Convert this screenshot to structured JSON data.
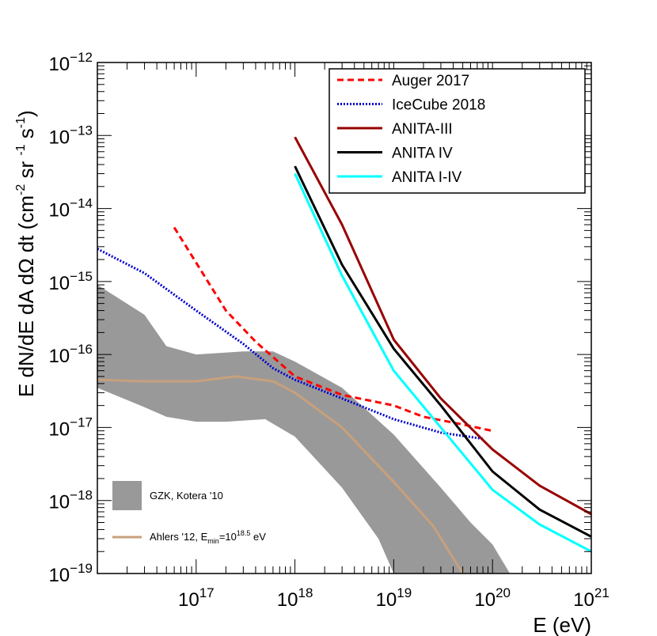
{
  "chart_data": {
    "type": "line",
    "log_x": true,
    "log_y": true,
    "xlim": [
      1e+16,
      1e+21
    ],
    "ylim": [
      1e-19,
      1e-12
    ],
    "xlabel": "E (eV)",
    "ylabel": "E dN/dE dA dΩ dt (cm⁻² sr ⁻¹ s⁻¹)",
    "ylabel_parts": {
      "base": "E dN/dE dA dΩ dt (cm",
      "exp1": "-2",
      "mid": " sr ",
      "exp2": "-1",
      "mid2": " s",
      "exp3": "-1",
      "end": ")"
    },
    "x_ticks": [
      {
        "value": 1e+17,
        "base": "10",
        "exp": "17"
      },
      {
        "value": 1e+18,
        "base": "10",
        "exp": "18"
      },
      {
        "value": 1e+19,
        "base": "10",
        "exp": "19"
      },
      {
        "value": 1e+20,
        "base": "10",
        "exp": "20"
      },
      {
        "value": 1e+21,
        "base": "10",
        "exp": "21"
      }
    ],
    "y_ticks": [
      {
        "value": 1e-12,
        "base": "10",
        "exp": "−12"
      },
      {
        "value": 1e-13,
        "base": "10",
        "exp": "−13"
      },
      {
        "value": 1e-14,
        "base": "10",
        "exp": "−14"
      },
      {
        "value": 1e-15,
        "base": "10",
        "exp": "−15"
      },
      {
        "value": 1e-16,
        "base": "10",
        "exp": "−16"
      },
      {
        "value": 1e-17,
        "base": "10",
        "exp": "−17"
      },
      {
        "value": 1e-18,
        "base": "10",
        "exp": "−18"
      },
      {
        "value": 1e-19,
        "base": "10",
        "exp": "−19"
      }
    ],
    "series": [
      {
        "name": "Auger 2017",
        "color": "#ff0000",
        "style": "dashed",
        "points": [
          [
            6e+16,
            5.5e-15
          ],
          [
            2e+17,
            4e-16
          ],
          [
            4e+17,
            1.5e-16
          ],
          [
            1e+18,
            5e-17
          ],
          [
            3e+18,
            2.8e-17
          ],
          [
            1e+19,
            2e-17
          ],
          [
            2e+19,
            1.4e-17
          ],
          [
            5e+19,
            1.1e-17
          ],
          [
            1e+20,
            9e-18
          ]
        ]
      },
      {
        "name": "IceCube 2018",
        "color": "#0000cc",
        "style": "dotted",
        "points": [
          [
            1e+16,
            2.8e-15
          ],
          [
            3e+16,
            1.3e-15
          ],
          [
            1e+17,
            4e-16
          ],
          [
            3e+17,
            1.4e-16
          ],
          [
            6e+17,
            6.5e-17
          ],
          [
            1e+18,
            4.5e-17
          ],
          [
            3e+18,
            2.5e-17
          ],
          [
            1e+19,
            1.3e-17
          ],
          [
            3e+19,
            8.5e-18
          ],
          [
            8e+19,
            7e-18
          ]
        ]
      },
      {
        "name": "ANITA-III",
        "color": "#990000",
        "style": "solid",
        "points": [
          [
            1e+18,
            9.5e-14
          ],
          [
            3e+18,
            6e-15
          ],
          [
            1e+19,
            1.6e-16
          ],
          [
            3e+19,
            2.5e-17
          ],
          [
            1e+20,
            5e-18
          ],
          [
            3e+20,
            1.6e-18
          ],
          [
            1e+21,
            6.5e-19
          ]
        ]
      },
      {
        "name": "ANITA IV",
        "color": "#000000",
        "style": "solid",
        "points": [
          [
            1e+18,
            3.8e-14
          ],
          [
            3e+18,
            1.7e-15
          ],
          [
            1e+19,
            1.2e-16
          ],
          [
            3e+19,
            2e-17
          ],
          [
            1e+20,
            2.5e-18
          ],
          [
            3e+20,
            7.5e-19
          ],
          [
            1e+21,
            3.2e-19
          ]
        ]
      },
      {
        "name": "ANITA I-IV",
        "color": "#00ffff",
        "style": "solid",
        "points": [
          [
            1e+18,
            3e-14
          ],
          [
            3e+18,
            1.2e-15
          ],
          [
            1e+19,
            6e-17
          ],
          [
            3e+19,
            1e-17
          ],
          [
            1e+20,
            1.4e-18
          ],
          [
            3e+20,
            4.7e-19
          ],
          [
            1e+21,
            2e-19
          ]
        ]
      },
      {
        "name": "Ahlers '12, E_min=10^18.5 eV",
        "color": "#c8a07c",
        "style": "solid",
        "points": [
          [
            1e+16,
            4.5e-17
          ],
          [
            3e+16,
            4.3e-17
          ],
          [
            1e+17,
            4.3e-17
          ],
          [
            2.5e+17,
            5e-17
          ],
          [
            6e+17,
            4.3e-17
          ],
          [
            1e+18,
            3e-17
          ],
          [
            3e+18,
            1e-17
          ],
          [
            1e+19,
            1.8e-18
          ],
          [
            2.5e+19,
            4.5e-19
          ],
          [
            5e+19,
            1e-19
          ]
        ]
      }
    ],
    "bands": [
      {
        "name": "GZK, Kotera '10",
        "color": "#999999",
        "upper": [
          [
            1e+16,
            9e-16
          ],
          [
            3e+16,
            3.5e-16
          ],
          [
            5e+16,
            1.3e-16
          ],
          [
            1e+17,
            1e-16
          ],
          [
            3e+17,
            1.1e-16
          ],
          [
            6e+17,
            1.1e-16
          ],
          [
            1e+18,
            8e-17
          ],
          [
            3e+18,
            3.5e-17
          ],
          [
            1e+19,
            8e-18
          ],
          [
            3e+19,
            1.5e-18
          ],
          [
            6e+19,
            5e-19
          ],
          [
            1e+20,
            2.5e-19
          ],
          [
            1.5e+20,
            1e-19
          ]
        ],
        "lower": [
          [
            1e+16,
            3.5e-17
          ],
          [
            3e+16,
            1.9e-17
          ],
          [
            5e+16,
            1.4e-17
          ],
          [
            1e+17,
            1.2e-17
          ],
          [
            2e+17,
            1.2e-17
          ],
          [
            5e+17,
            1.3e-17
          ],
          [
            1e+18,
            7.5e-18
          ],
          [
            3e+18,
            1.5e-18
          ],
          [
            7e+18,
            3e-19
          ],
          [
            1e+19,
            1e-19
          ]
        ]
      }
    ],
    "legend": {
      "placement": "top-right",
      "entries": [
        "Auger 2017",
        "IceCube 2018",
        "ANITA-III",
        "ANITA IV",
        "ANITA I-IV"
      ]
    },
    "inset_legend": {
      "placement": "bottom-left",
      "gzk_label": "GZK, Kotera '10",
      "ahlers_label_base": "Ahlers '12, E",
      "ahlers_label_sub": "min",
      "ahlers_label_eq": "=10",
      "ahlers_label_exp": "18.5",
      "ahlers_label_unit": " eV"
    }
  }
}
